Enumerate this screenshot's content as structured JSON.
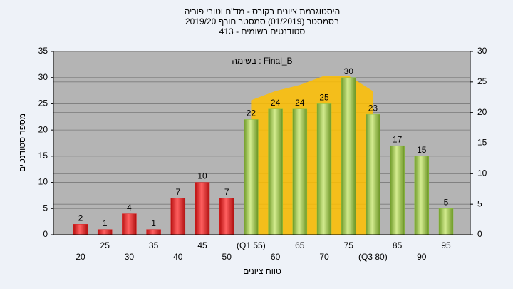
{
  "chart_data": {
    "type": "bar",
    "title": "היסטוגרמת ציונים בקורס - מד\"ח וטורי פוריה",
    "subtitle": [
      "בסמסטר (01/2019) סמסטר חורף 2019/20",
      "סטודנטים רשומים - 413"
    ],
    "annotation": "בשימה : Final_B",
    "x_label": "טווח ציונים",
    "y_label": "מספר סטודנטים",
    "categories": [
      "20",
      "25",
      "30",
      "35",
      "40",
      "45",
      "50",
      "(Q1 55)",
      "60",
      "65",
      "70",
      "75",
      "(Q3 80)",
      "85",
      "90",
      "95"
    ],
    "values": [
      2,
      1,
      4,
      1,
      7,
      10,
      7,
      22,
      24,
      24,
      25,
      30,
      23,
      17,
      15,
      5
    ],
    "colors": [
      "#e02020",
      "#e02020",
      "#e02020",
      "#e02020",
      "#e02020",
      "#e02020",
      "#e02020",
      "#8cc43c",
      "#8cc43c",
      "#8cc43c",
      "#8cc43c",
      "#8cc43c",
      "#8cc43c",
      "#8cc43c",
      "#8cc43c",
      "#8cc43c"
    ],
    "area": {
      "color": "#ffc000",
      "axis": "y2",
      "values": [
        null,
        null,
        null,
        null,
        null,
        null,
        null,
        22,
        23.5,
        24.5,
        26,
        26,
        23.5,
        null,
        null,
        null
      ]
    },
    "ylim": [
      0,
      35
    ],
    "yticks": [
      0,
      5,
      10,
      15,
      20,
      25,
      30,
      35
    ],
    "y2lim": [
      0,
      30
    ],
    "y2ticks": [
      0,
      5,
      10,
      15,
      20,
      25,
      30
    ],
    "grid": true
  }
}
